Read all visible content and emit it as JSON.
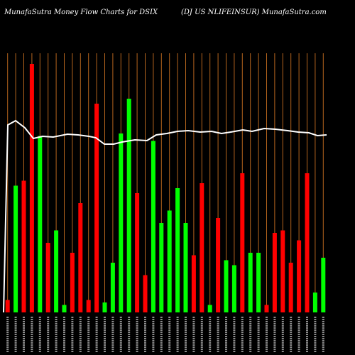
{
  "header": {
    "left": "MunafaSutra  Money Flow  Charts for DSIX",
    "right": "(DJ US NLIFEINSUR) MunafaSutra.com"
  },
  "colors": {
    "background": "#000000",
    "grid": "#b5651d",
    "up": "#00ff00",
    "down": "#ff0000",
    "line": "#ffffff",
    "axis_text": "#ffffff"
  },
  "chart_data": {
    "type": "bar",
    "title": "MunafaSutra  Money Flow  Charts for DSIX",
    "xlabel": "",
    "ylabel": "",
    "ylim": [
      0,
      100
    ],
    "grid": true,
    "bars": [
      {
        "value": 5,
        "direction": "down"
      },
      {
        "value": 51,
        "direction": "up"
      },
      {
        "value": 53,
        "direction": "down"
      },
      {
        "value": 100,
        "direction": "down"
      },
      {
        "value": 71,
        "direction": "up"
      },
      {
        "value": 28,
        "direction": "down"
      },
      {
        "value": 33,
        "direction": "up"
      },
      {
        "value": 3,
        "direction": "up"
      },
      {
        "value": 24,
        "direction": "down"
      },
      {
        "value": 44,
        "direction": "down"
      },
      {
        "value": 5,
        "direction": "down"
      },
      {
        "value": 84,
        "direction": "down"
      },
      {
        "value": 4,
        "direction": "up"
      },
      {
        "value": 20,
        "direction": "up"
      },
      {
        "value": 72,
        "direction": "up"
      },
      {
        "value": 86,
        "direction": "up"
      },
      {
        "value": 48,
        "direction": "down"
      },
      {
        "value": 15,
        "direction": "down"
      },
      {
        "value": 69,
        "direction": "up"
      },
      {
        "value": 36,
        "direction": "up"
      },
      {
        "value": 41,
        "direction": "up"
      },
      {
        "value": 50,
        "direction": "up"
      },
      {
        "value": 36,
        "direction": "up"
      },
      {
        "value": 23,
        "direction": "down"
      },
      {
        "value": 52,
        "direction": "down"
      },
      {
        "value": 3,
        "direction": "up"
      },
      {
        "value": 38,
        "direction": "down"
      },
      {
        "value": 21,
        "direction": "up"
      },
      {
        "value": 19,
        "direction": "up"
      },
      {
        "value": 56,
        "direction": "down"
      },
      {
        "value": 24,
        "direction": "up"
      },
      {
        "value": 24,
        "direction": "up"
      },
      {
        "value": 3,
        "direction": "down"
      },
      {
        "value": 32,
        "direction": "down"
      },
      {
        "value": 33,
        "direction": "down"
      },
      {
        "value": 20,
        "direction": "down"
      },
      {
        "value": 29,
        "direction": "down"
      },
      {
        "value": 56,
        "direction": "down"
      },
      {
        "value": 8,
        "direction": "up"
      },
      {
        "value": 22,
        "direction": "up"
      }
    ],
    "line": [
      100,
      85,
      86,
      86,
      86,
      86,
      86,
      86,
      86,
      86,
      86,
      82,
      81,
      82,
      82,
      84,
      82,
      81,
      84,
      85,
      86,
      86,
      86,
      86,
      86,
      86,
      86,
      86,
      86,
      86,
      86,
      86,
      86,
      86,
      86,
      86,
      86,
      86,
      86,
      86,
      86
    ],
    "line_ylim": [
      0,
      100
    ]
  }
}
